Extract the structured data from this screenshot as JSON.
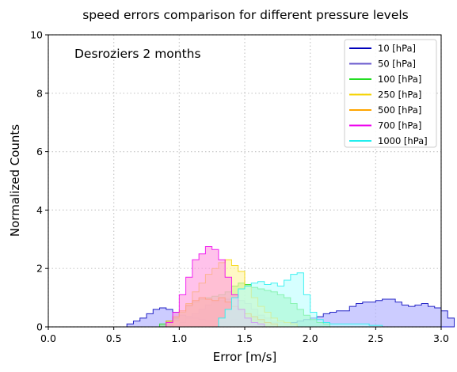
{
  "chart_data": {
    "type": "area",
    "title": "speed errors comparison for different pressure levels",
    "annotation": "Desroziers 2 months",
    "xlabel": "Error [m/s]",
    "ylabel": "Normalized Counts",
    "xlim": [
      0.0,
      3.0
    ],
    "ylim": [
      0,
      10
    ],
    "x_ticks": [
      "0.0",
      "0.5",
      "1.0",
      "1.5",
      "2.0",
      "2.5",
      "3.0"
    ],
    "y_ticks": [
      "0",
      "2",
      "4",
      "6",
      "8",
      "10"
    ],
    "grid": true,
    "legend_position": "top-right",
    "bin_width": 0.05,
    "series": [
      {
        "name": "10 [hPa]",
        "color": "#0000bb",
        "fill": "#aaaaff",
        "x_start": 0.6,
        "values": [
          0.1,
          0.2,
          0.3,
          0.45,
          0.6,
          0.65,
          0.6,
          0.5,
          0.4,
          0.35,
          0.3,
          0.25,
          0.2,
          0.2,
          0.15,
          0.2,
          0.25,
          0.35,
          0.3,
          0.25,
          0.2,
          0.15,
          0.15,
          0.1,
          0.1,
          0.15,
          0.2,
          0.25,
          0.3,
          0.35,
          0.45,
          0.5,
          0.55,
          0.55,
          0.7,
          0.8,
          0.85,
          0.85,
          0.9,
          0.95,
          0.95,
          0.85,
          0.75,
          0.7,
          0.75,
          0.8,
          0.7,
          0.65,
          0.55,
          0.3
        ]
      },
      {
        "name": "50 [hPa]",
        "color": "#6a5acd",
        "fill": "#c8c0f0",
        "x_start": 1.0,
        "values": [
          0.15,
          0.3,
          0.45,
          0.6,
          0.75,
          0.85,
          0.9,
          0.95,
          0.95,
          0.9,
          0.8,
          0.6,
          0.4,
          0.3,
          0.2,
          0.15,
          0.1,
          0.05
        ]
      },
      {
        "name": "100 [hPa]",
        "color": "#22dd22",
        "fill": "#88ee88",
        "x_start": 0.85,
        "values": [
          0.1,
          0.2,
          0.3,
          0.5,
          0.7,
          0.85,
          0.95,
          1.0,
          1.05,
          1.1,
          1.2,
          1.4,
          1.5,
          1.45,
          1.35,
          1.3,
          1.25,
          1.2,
          1.1,
          1.0,
          0.8,
          0.6,
          0.4,
          0.25,
          0.15,
          0.1
        ]
      },
      {
        "name": "250 [hPa]",
        "color": "#f5d300",
        "fill": "#fff3a0",
        "x_start": 0.95,
        "values": [
          0.2,
          0.5,
          0.8,
          1.2,
          1.5,
          1.8,
          2.0,
          2.2,
          2.3,
          2.1,
          1.9,
          1.4,
          1.0,
          0.7,
          0.5,
          0.3,
          0.2,
          0.15,
          0.1
        ]
      },
      {
        "name": "500 [hPa]",
        "color": "#ffa500",
        "fill": "#ffd27f",
        "x_start": 0.9,
        "values": [
          0.2,
          0.35,
          0.55,
          0.75,
          0.9,
          1.0,
          0.95,
          0.9,
          1.0,
          0.85,
          0.7,
          0.6,
          0.45,
          0.35,
          0.25,
          0.15,
          0.1
        ]
      },
      {
        "name": "700 [hPa]",
        "color": "#ee00ee",
        "fill": "#ff99dd",
        "x_start": 0.9,
        "values": [
          0.15,
          0.5,
          1.1,
          1.7,
          2.3,
          2.5,
          2.75,
          2.65,
          2.3,
          1.7,
          1.1,
          0.6,
          0.3,
          0.15,
          0.1
        ]
      },
      {
        "name": "1000 [hPa]",
        "color": "#22eeee",
        "fill": "#bbffff",
        "x_start": 1.3,
        "values": [
          0.3,
          0.6,
          1.0,
          1.3,
          1.4,
          1.5,
          1.55,
          1.45,
          1.5,
          1.4,
          1.6,
          1.8,
          1.85,
          1.1,
          0.5,
          0.25,
          0.15,
          0.1,
          0.1,
          0.1,
          0.1,
          0.1,
          0.1,
          0.05,
          0.05
        ]
      }
    ]
  }
}
